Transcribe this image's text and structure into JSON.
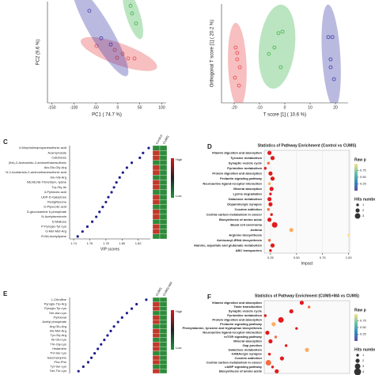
{
  "chart_data": [
    {
      "type": "scatter",
      "xlabel": "PC1 ( 74.7 %)",
      "ylabel": "PC2 (9.6 %)",
      "xlim": [
        -160,
        110
      ],
      "ylim": [
        -60,
        60
      ],
      "xticks": [
        -150,
        -100,
        -50,
        0,
        50,
        100
      ],
      "series": [
        {
          "color": "#e8474a",
          "x": [
            -48.5,
            -7,
            -1.7,
            11,
            23.5,
            38
          ],
          "values": [
            7.4,
            2.8,
            -6.5,
            -1.8,
            -7.4,
            -7.4
          ]
        },
        {
          "color": "#3a3aa8",
          "x": [
            -64.7,
            -37.7,
            -16
          ],
          "values": [
            49,
            16.6,
            9.2
          ]
        },
        {
          "color": "#3cb44b",
          "x": [
            29,
            32.5,
            41.5
          ],
          "values": [
            55,
            46,
            34
          ]
        }
      ]
    },
    {
      "type": "scatter",
      "xlabel": "T score [1] ( 10.6 %)",
      "ylabel": "Orthogonal T score [1] ( 20.2 %)",
      "xlim": [
        -25,
        25
      ],
      "ylim": [
        -10,
        10
      ],
      "xticks": [
        -20,
        -10,
        0,
        10,
        20
      ],
      "series": [
        {
          "color": "#e8474a",
          "x": [
            -19.4,
            -18.8,
            -17.8,
            -19.7,
            -18.1,
            -18.8
          ],
          "values": [
            1.2,
            -1.2,
            -2.8,
            -4.9,
            -6.5,
            0.1
          ]
        },
        {
          "color": "#3cb44b",
          "x": [
            -6.3,
            -4.1,
            -2.5,
            -0.9,
            -1.6
          ],
          "values": [
            -0.1,
            1.2,
            4.1,
            4.4,
            -2.8
          ]
        },
        {
          "color": "#3a3aa8",
          "x": [
            17.2,
            18.8,
            18.1,
            19.4,
            18.1
          ],
          "values": [
            3.3,
            3.3,
            -1.2,
            -5.2,
            -2.8
          ]
        }
      ]
    },
    {
      "type": "dot",
      "panel": "C",
      "xlabel": "VIP scores",
      "xlim": [
        1.735,
        1.835
      ],
      "xticks": [
        1.74,
        1.76,
        1.78,
        {
          "value": 1.8,
          "label": "1.80"
        },
        1.82
      ],
      "color": "#1f1f8f",
      "heatmap_columns": [
        "Control",
        "CUMS"
      ],
      "scale_labels": [
        "High",
        "Low"
      ],
      "categories": [
        "4-Morpholinopropanesulfonic acid",
        "Acamprosate",
        "Cellobiose",
        "(9xi)-2-Acetamido-2-aminoethanesulfonic",
        "Ala-Glu-Gly-Arg",
        "N-2-Acetamido-2-aminoethanesulfonic acid",
        "Glu-Val-Arg",
        "N6,N6,N6-Trimethyl-L-lysine",
        "Trp-Gly-Ile",
        "4-Pyridoxic acid",
        "UDP-D-Galactose",
        "Rosiglitazone",
        "D-Pipecolic acid",
        "D-glucosamine 6-phosphate",
        "N-Acetylserotonin",
        "D-Maltose",
        "P-Pyroglu-Tyr-Lys",
        "G-Met-Met-Arg",
        "R-N6-Acetyllysine"
      ],
      "values": [
        1.833,
        1.826,
        1.822,
        1.812,
        1.806,
        1.801,
        1.797,
        1.793,
        1.79,
        1.787,
        1.783,
        1.78,
        1.776,
        1.772,
        1.768,
        1.763,
        1.757,
        1.751,
        1.745
      ]
    },
    {
      "type": "bubble",
      "panel": "D",
      "title": "Statistics of Pathway Enrichment (Control vs CUMS)",
      "xlabel": "Impact",
      "xlim": [
        0.19,
        1.01
      ],
      "xticks": [
        0.25,
        {
          "value": 0.5,
          "label": "0.50"
        },
        0.75,
        {
          "value": 1,
          "label": "1.00"
        }
      ],
      "legend_title": "Raw p",
      "color_lim": [
        0,
        1
      ],
      "color_ticks": [
        0.75,
        {
          "value": 0.5,
          "label": "0.50"
        },
        0.25
      ],
      "size_title": "Hits number",
      "size_ticks": [
        1,
        2,
        3
      ],
      "categories": [
        "Vitamin digestion and absorption",
        "Tyrosine metabolism",
        "Synaptic vesicle cycle",
        "Pyrimidine metabolism",
        "Protein digestion and absorption",
        "Prolactin signaling pathway",
        "Neuroactive ligand-receptor interaction",
        "Mineral absorption",
        "Lysine degradation",
        "Galactose metabolism",
        "Dopaminergic synapse",
        "Cocaine addiction",
        "Central carbon metabolism in cancer",
        "Biosynthesis of amino acids",
        "Basal cell carcinoma",
        "Asthma",
        "Arginine biosynthesis",
        "Aminoacyl-tRNA biosynthesis",
        "Alanine, aspartate and glutamate metabolism",
        "ABC transporters"
      ],
      "values": [
        0.24,
        0.27,
        0.23,
        0.2,
        0.25,
        0.27,
        0.24,
        0.26,
        0.25,
        0.24,
        0.25,
        0.23,
        0.26,
        0.24,
        0.29,
        0.45,
        1.0,
        0.24,
        0.27,
        0.25
      ],
      "sizes": [
        2,
        2,
        1,
        1,
        2,
        2,
        1,
        2,
        1,
        2,
        2,
        1,
        1,
        2,
        3,
        2,
        1,
        1,
        2,
        1
      ],
      "colors": [
        "#e31a1c",
        "#e31a1c",
        "#f46d43",
        "#e31a1c",
        "#e31a1c",
        "#e31a1c",
        "#fdae61",
        "#e31a1c",
        "#e31a1c",
        "#e31a1c",
        "#e31a1c",
        "#f46d43",
        "#e31a1c",
        "#e31a1c",
        "#e31a1c",
        "#fdae61",
        "#fee08b",
        "#f46d43",
        "#e31a1c",
        "#e31a1c"
      ]
    },
    {
      "type": "dot",
      "panel": "E",
      "xlim": [
        1.735,
        1.835
      ],
      "color": "#1f1f8f",
      "heatmap_columns": [
        "CUMS",
        "CUMS+MA"
      ],
      "scale_labels": [
        "High",
        "Low"
      ],
      "categories": [
        "L-Citrulline",
        "Pyroglu-Trp-Arg",
        "Pyroglu-Tyr-Lys",
        "Ser-Asn-Lys",
        "Pyridoxal",
        "Acetyl phosphate",
        "Arg-Glu-Arg",
        "His-Met-Arg",
        "Tyr-Gly-Arg",
        "Ile-Glu-Lys",
        "Thr-Gly-Lys",
        "Histamine",
        "Thr-Ser-Lys",
        "Saccharopine",
        "Phe-Phe",
        "Tyr-Ser-Lys",
        "Ser-Thr-Lys"
      ],
      "values": [
        1.83,
        1.818,
        1.812,
        1.806,
        1.8,
        1.795,
        1.79,
        1.786,
        1.782,
        1.778,
        1.774,
        1.77,
        1.766,
        1.762,
        1.758,
        1.752,
        1.746
      ]
    },
    {
      "type": "bubble",
      "panel": "F",
      "title": "Statistics of Pathway Enrichment (CUMS+MA vs CUMS)",
      "xlim": [
        0.19,
        1.01
      ],
      "legend_title": "Raw p",
      "color_lim": [
        0,
        1
      ],
      "color_ticks": [
        0.75,
        {
          "value": 0.5,
          "label": "0.50"
        },
        0.25
      ],
      "size_title": "Hits number",
      "size_ticks": [
        1,
        2,
        3,
        4
      ],
      "categories": [
        "Vitamin digestion and absorption",
        "Taste transduction",
        "Synaptic vesicle cycle",
        "Pyrimidine metabolism",
        "Protein digestion and absorption",
        "Prolactin signaling pathway",
        "Phenylalanine, tyrosine and tryptophan biosynthesis",
        "Neuroactive ligand-receptor interaction",
        "mTOR signaling pathway",
        "Mineral absorption",
        "Gap junction",
        "Galactose metabolism",
        "GABAergic synapse",
        "Cocaine addiction",
        "Central carbon metabolism in cancer",
        "cAMP signaling pathway",
        "Biosynthesis of amino acids"
      ],
      "values": [
        0.55,
        0.62,
        0.45,
        0.2,
        0.35,
        0.28,
        0.5,
        0.22,
        0.3,
        0.25,
        0.4,
        0.6,
        0.24,
        0.36,
        0.23,
        0.27,
        0.31
      ],
      "sizes": [
        2,
        1,
        2,
        1,
        3,
        2,
        1,
        2,
        1,
        2,
        1,
        2,
        1,
        2,
        3,
        1,
        2
      ],
      "colors": [
        "#e31a1c",
        "#f46d43",
        "#e31a1c",
        "#e31a1c",
        "#e31a1c",
        "#fdae61",
        "#e31a1c",
        "#e31a1c",
        "#f46d43",
        "#e31a1c",
        "#e31a1c",
        "#fdae61",
        "#e31a1c",
        "#e31a1c",
        "#f46d43",
        "#e31a1c",
        "#e31a1c"
      ]
    }
  ]
}
